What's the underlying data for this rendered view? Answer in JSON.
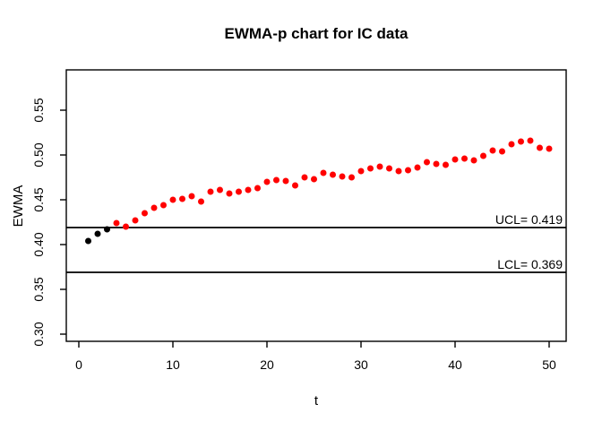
{
  "chart_data": {
    "type": "scatter",
    "title": "EWMA-p chart for IC data",
    "xlabel": "t",
    "ylabel": "EWMA",
    "xlim": [
      -1.333,
      51.81
    ],
    "ylim": [
      0.292,
      0.595
    ],
    "x_ticks": [
      0,
      10,
      20,
      30,
      40,
      50
    ],
    "x_tick_labels": [
      "0",
      "10",
      "20",
      "30",
      "40",
      "50"
    ],
    "y_ticks": [
      0.3,
      0.35,
      0.4,
      0.45,
      0.5,
      0.55
    ],
    "y_tick_labels": [
      "0.30",
      "0.35",
      "0.40",
      "0.45",
      "0.50",
      "0.55"
    ],
    "grid": false,
    "ucl": {
      "label": "UCL= 0.419",
      "value": 0.419
    },
    "lcl": {
      "label": "LCL= 0.369",
      "value": 0.369
    },
    "point_colors": {
      "in_control": "#000000",
      "out_of_control": "#ff0000"
    },
    "points": [
      {
        "t": 1,
        "ewma": 0.404,
        "color": "#000000"
      },
      {
        "t": 2,
        "ewma": 0.412,
        "color": "#000000"
      },
      {
        "t": 3,
        "ewma": 0.417,
        "color": "#000000"
      },
      {
        "t": 4,
        "ewma": 0.424,
        "color": "#ff0000"
      },
      {
        "t": 5,
        "ewma": 0.42,
        "color": "#ff0000"
      },
      {
        "t": 6,
        "ewma": 0.427,
        "color": "#ff0000"
      },
      {
        "t": 7,
        "ewma": 0.435,
        "color": "#ff0000"
      },
      {
        "t": 8,
        "ewma": 0.441,
        "color": "#ff0000"
      },
      {
        "t": 9,
        "ewma": 0.444,
        "color": "#ff0000"
      },
      {
        "t": 10,
        "ewma": 0.45,
        "color": "#ff0000"
      },
      {
        "t": 11,
        "ewma": 0.451,
        "color": "#ff0000"
      },
      {
        "t": 12,
        "ewma": 0.454,
        "color": "#ff0000"
      },
      {
        "t": 13,
        "ewma": 0.448,
        "color": "#ff0000"
      },
      {
        "t": 14,
        "ewma": 0.459,
        "color": "#ff0000"
      },
      {
        "t": 15,
        "ewma": 0.461,
        "color": "#ff0000"
      },
      {
        "t": 16,
        "ewma": 0.457,
        "color": "#ff0000"
      },
      {
        "t": 17,
        "ewma": 0.459,
        "color": "#ff0000"
      },
      {
        "t": 18,
        "ewma": 0.461,
        "color": "#ff0000"
      },
      {
        "t": 19,
        "ewma": 0.463,
        "color": "#ff0000"
      },
      {
        "t": 20,
        "ewma": 0.47,
        "color": "#ff0000"
      },
      {
        "t": 21,
        "ewma": 0.472,
        "color": "#ff0000"
      },
      {
        "t": 22,
        "ewma": 0.471,
        "color": "#ff0000"
      },
      {
        "t": 23,
        "ewma": 0.466,
        "color": "#ff0000"
      },
      {
        "t": 24,
        "ewma": 0.475,
        "color": "#ff0000"
      },
      {
        "t": 25,
        "ewma": 0.473,
        "color": "#ff0000"
      },
      {
        "t": 26,
        "ewma": 0.48,
        "color": "#ff0000"
      },
      {
        "t": 27,
        "ewma": 0.478,
        "color": "#ff0000"
      },
      {
        "t": 28,
        "ewma": 0.476,
        "color": "#ff0000"
      },
      {
        "t": 29,
        "ewma": 0.475,
        "color": "#ff0000"
      },
      {
        "t": 30,
        "ewma": 0.482,
        "color": "#ff0000"
      },
      {
        "t": 31,
        "ewma": 0.485,
        "color": "#ff0000"
      },
      {
        "t": 32,
        "ewma": 0.487,
        "color": "#ff0000"
      },
      {
        "t": 33,
        "ewma": 0.485,
        "color": "#ff0000"
      },
      {
        "t": 34,
        "ewma": 0.482,
        "color": "#ff0000"
      },
      {
        "t": 35,
        "ewma": 0.483,
        "color": "#ff0000"
      },
      {
        "t": 36,
        "ewma": 0.486,
        "color": "#ff0000"
      },
      {
        "t": 37,
        "ewma": 0.492,
        "color": "#ff0000"
      },
      {
        "t": 38,
        "ewma": 0.49,
        "color": "#ff0000"
      },
      {
        "t": 39,
        "ewma": 0.489,
        "color": "#ff0000"
      },
      {
        "t": 40,
        "ewma": 0.495,
        "color": "#ff0000"
      },
      {
        "t": 41,
        "ewma": 0.496,
        "color": "#ff0000"
      },
      {
        "t": 42,
        "ewma": 0.494,
        "color": "#ff0000"
      },
      {
        "t": 43,
        "ewma": 0.499,
        "color": "#ff0000"
      },
      {
        "t": 44,
        "ewma": 0.505,
        "color": "#ff0000"
      },
      {
        "t": 45,
        "ewma": 0.504,
        "color": "#ff0000"
      },
      {
        "t": 46,
        "ewma": 0.512,
        "color": "#ff0000"
      },
      {
        "t": 47,
        "ewma": 0.515,
        "color": "#ff0000"
      },
      {
        "t": 48,
        "ewma": 0.516,
        "color": "#ff0000"
      },
      {
        "t": 49,
        "ewma": 0.508,
        "color": "#ff0000"
      },
      {
        "t": 50,
        "ewma": 0.507,
        "color": "#ff0000"
      }
    ]
  }
}
